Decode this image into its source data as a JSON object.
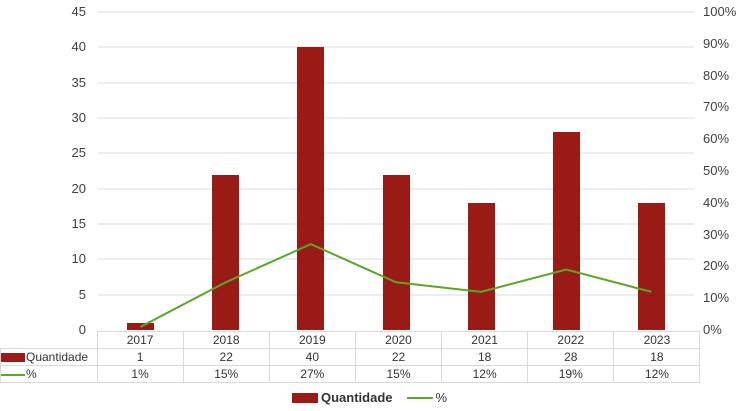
{
  "chart_data": {
    "type": "bar",
    "combo": "bar+line",
    "title": "",
    "xlabel": "",
    "ylabel": "",
    "categories": [
      "2017",
      "2018",
      "2019",
      "2020",
      "2021",
      "2022",
      "2023"
    ],
    "series": [
      {
        "name": "Quantidade",
        "type": "bar",
        "axis": "left",
        "color": "#9a1a16",
        "values": [
          1,
          22,
          40,
          22,
          18,
          28,
          18
        ]
      },
      {
        "name": "%",
        "type": "line",
        "axis": "right",
        "color": "#5aa82a",
        "values": [
          1,
          15,
          27,
          15,
          12,
          19,
          12
        ],
        "unit": "%"
      }
    ],
    "ylim": [
      0,
      45
    ],
    "y_ticks": [
      "45",
      "40",
      "35",
      "30",
      "25",
      "20",
      "15",
      "10",
      "5",
      "0"
    ],
    "y2lim": [
      0,
      100
    ],
    "y2_ticks": [
      "100%",
      "90%",
      "80%",
      "70%",
      "60%",
      "50%",
      "40%",
      "30%",
      "20%",
      "10%",
      "0%"
    ],
    "grid": true,
    "legend_position": "bottom",
    "data_table": {
      "rows": [
        {
          "label": "Quantidade",
          "values": [
            "1",
            "22",
            "40",
            "22",
            "18",
            "28",
            "18"
          ]
        },
        {
          "label": "%",
          "values": [
            "1%",
            "15%",
            "27%",
            "15%",
            "12%",
            "19%",
            "12%"
          ]
        }
      ]
    }
  },
  "legend": {
    "bar_label": "Quantidade",
    "line_label": "%"
  }
}
